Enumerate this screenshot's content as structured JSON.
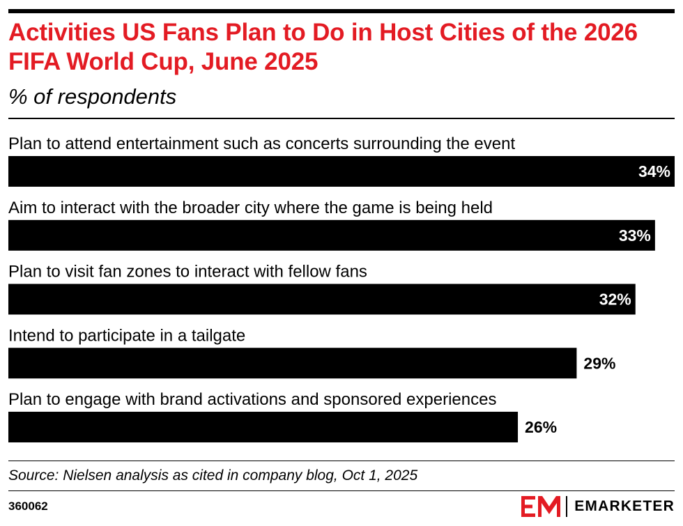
{
  "title": "Activities US Fans Plan to Do in Host Cities of the 2026 FIFA World Cup, June 2025",
  "subtitle": "% of respondents",
  "chart_data": {
    "type": "bar",
    "orientation": "horizontal",
    "categories": [
      "Plan to attend entertainment such as concerts surrounding the event",
      "Aim to interact with the broader city where the game is being held",
      "Plan to visit fan zones to interact with fellow fans",
      "Intend to participate in a tailgate",
      "Plan to engage with brand activations and sponsored experiences"
    ],
    "values": [
      34,
      33,
      32,
      29,
      26
    ],
    "value_labels": [
      "34%",
      "33%",
      "32%",
      "29%",
      "26%"
    ],
    "title": "Activities US Fans Plan to Do in Host Cities of the 2026 FIFA World Cup, June 2025",
    "subtitle": "% of respondents",
    "xlim": [
      0,
      34
    ],
    "grid": false,
    "legend": "none",
    "bar_color": "#000000"
  },
  "source": "Source: Nielsen analysis as cited in company blog, Oct 1, 2025",
  "footer": {
    "chart_id": "360062",
    "brand_name": "EMARKETER",
    "brand_logo_text": "EM",
    "brand_color": "#e31b23"
  },
  "colors": {
    "title": "#e31b23",
    "text": "#000000",
    "bar": "#000000",
    "label_inside": "#ffffff",
    "label_outside": "#000000"
  }
}
